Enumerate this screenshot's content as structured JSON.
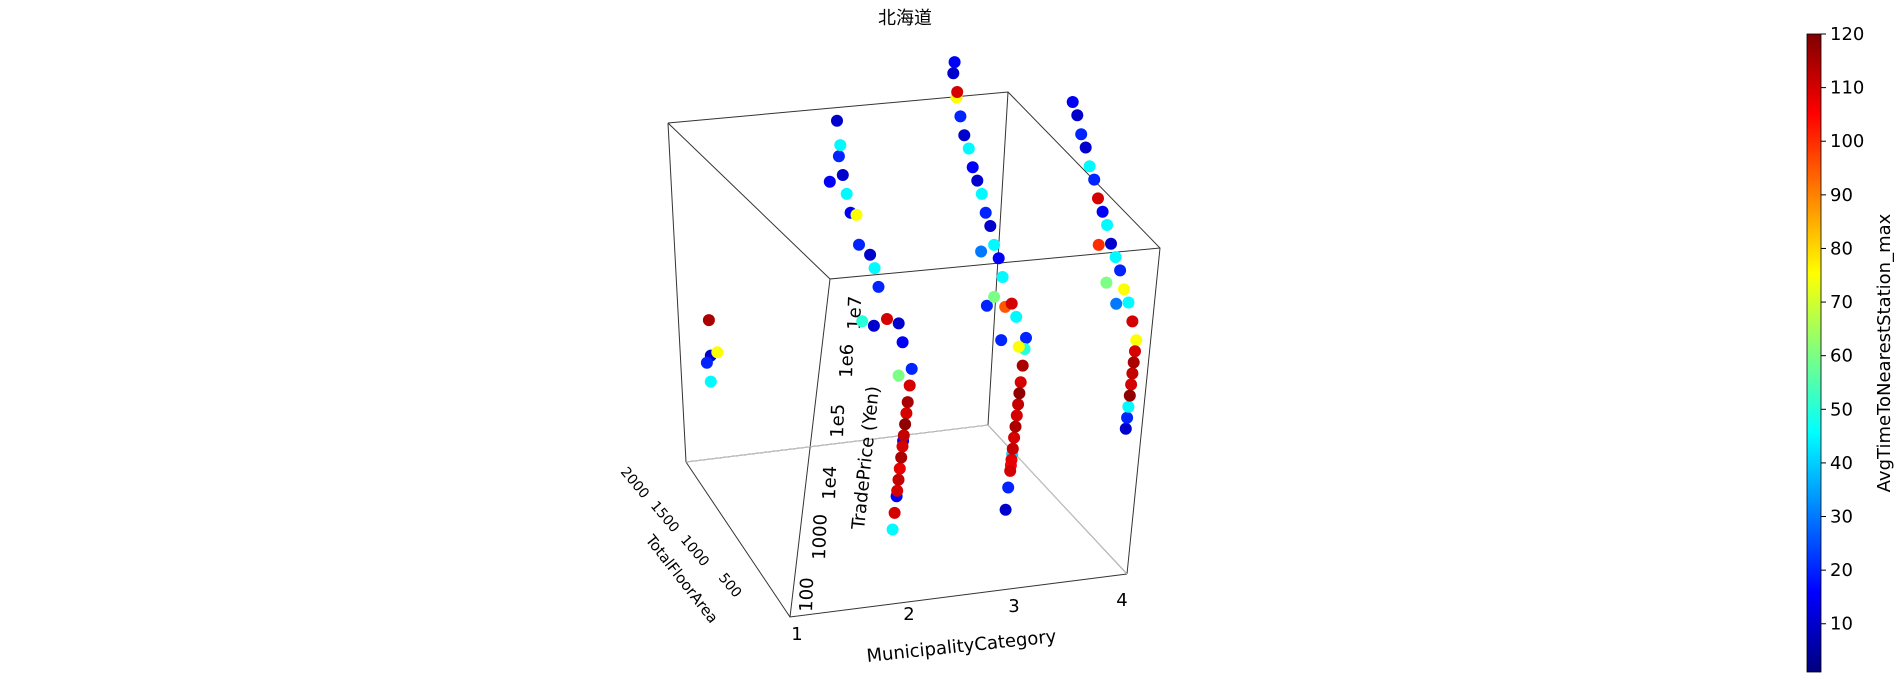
{
  "chart_data": {
    "type": "scatter",
    "projection": "3d",
    "title": "北海道",
    "xlabel": "MunicipalityCategory",
    "ylabel": "TotalFloorArea",
    "zlabel": "TradePrice (Yen)",
    "x_ticks": [
      "1",
      "2",
      "3",
      "4"
    ],
    "y_ticks": [
      "2000",
      "1500",
      "1000",
      "500"
    ],
    "z_ticks": [
      "100",
      "1000",
      "1e4",
      "1e5",
      "1e6",
      "1e7"
    ],
    "z_scale": "log",
    "colorbar": {
      "label": "AvgTimeToNearestStation_max",
      "colormap": "jet",
      "range": [
        1,
        120
      ],
      "ticks": [
        "120",
        "110",
        "100",
        "90",
        "80",
        "70",
        "60",
        "50",
        "40",
        "30",
        "20",
        "10"
      ]
    },
    "series": [
      {
        "description": "data points: x=MunicipalityCategory, y=TotalFloorArea, z=log10(TradePrice), c=AvgTimeToNearestStation_max",
        "points": [
          [
            1,
            1900,
            4.7,
            115
          ],
          [
            1,
            1850,
            4.0,
            20
          ],
          [
            1,
            1800,
            4.2,
            10
          ],
          [
            1,
            1750,
            3.8,
            45
          ],
          [
            1,
            1700,
            4.4,
            75
          ],
          [
            2,
            300,
            5.5,
            110
          ],
          [
            2,
            300,
            5.2,
            115
          ],
          [
            2,
            300,
            5.0,
            110
          ],
          [
            2,
            300,
            4.8,
            118
          ],
          [
            2,
            300,
            4.6,
            112
          ],
          [
            2,
            300,
            4.4,
            110
          ],
          [
            2,
            300,
            4.2,
            115
          ],
          [
            2,
            300,
            4.0,
            108
          ],
          [
            2,
            300,
            3.8,
            112
          ],
          [
            2,
            300,
            3.6,
            110
          ],
          [
            2,
            300,
            5.8,
            20
          ],
          [
            2,
            300,
            4.5,
            15
          ],
          [
            2,
            300,
            3.2,
            110
          ],
          [
            2,
            300,
            2.9,
            45
          ],
          [
            2,
            300,
            3.5,
            15
          ],
          [
            2,
            500,
            5.4,
            60
          ],
          [
            2,
            500,
            6.0,
            15
          ],
          [
            2,
            600,
            6.2,
            10
          ],
          [
            2,
            800,
            6.0,
            110
          ],
          [
            2,
            1000,
            6.3,
            20
          ],
          [
            2,
            1100,
            6.5,
            45
          ],
          [
            2,
            1200,
            6.6,
            10
          ],
          [
            2,
            1400,
            6.5,
            20
          ],
          [
            2,
            1500,
            6.9,
            75
          ],
          [
            2,
            1600,
            6.8,
            15
          ],
          [
            2,
            1700,
            7.0,
            45
          ],
          [
            2,
            1800,
            7.2,
            10
          ],
          [
            2,
            1900,
            7.4,
            20
          ],
          [
            2,
            1900,
            7.6,
            45
          ],
          [
            2,
            2000,
            7.9,
            10
          ],
          [
            2,
            2000,
            6.8,
            15
          ],
          [
            2,
            1000,
            5.6,
            10
          ],
          [
            2,
            1200,
            5.4,
            50
          ],
          [
            3,
            300,
            5.6,
            115
          ],
          [
            3,
            300,
            5.3,
            110
          ],
          [
            3,
            300,
            5.1,
            118
          ],
          [
            3,
            300,
            4.9,
            112
          ],
          [
            3,
            300,
            4.7,
            110
          ],
          [
            3,
            300,
            4.5,
            115
          ],
          [
            3,
            300,
            4.3,
            110
          ],
          [
            3,
            300,
            4.1,
            112
          ],
          [
            3,
            300,
            3.9,
            108
          ],
          [
            3,
            300,
            3.7,
            110
          ],
          [
            3,
            300,
            5.9,
            50
          ],
          [
            3,
            300,
            6.1,
            20
          ],
          [
            3,
            300,
            4.0,
            40
          ],
          [
            3,
            300,
            3.4,
            20
          ],
          [
            3,
            300,
            3.0,
            10
          ],
          [
            3,
            300,
            3.8,
            105
          ],
          [
            3,
            400,
            5.8,
            75
          ],
          [
            3,
            500,
            6.2,
            45
          ],
          [
            3,
            600,
            6.3,
            110
          ],
          [
            3,
            700,
            6.1,
            95
          ],
          [
            3,
            800,
            6.5,
            45
          ],
          [
            3,
            900,
            6.7,
            15
          ],
          [
            3,
            1000,
            6.8,
            45
          ],
          [
            3,
            1100,
            7.0,
            10
          ],
          [
            3,
            1200,
            7.1,
            20
          ],
          [
            3,
            1300,
            7.3,
            45
          ],
          [
            3,
            1400,
            7.4,
            10
          ],
          [
            3,
            1500,
            7.5,
            15
          ],
          [
            3,
            1600,
            7.7,
            45
          ],
          [
            3,
            1700,
            7.8,
            10
          ],
          [
            3,
            1800,
            8.0,
            20
          ],
          [
            3,
            1900,
            8.2,
            75
          ],
          [
            3,
            1900,
            8.3,
            110
          ],
          [
            3,
            2000,
            8.5,
            10
          ],
          [
            3,
            2000,
            8.7,
            15
          ],
          [
            3,
            1000,
            5.7,
            20
          ],
          [
            3,
            900,
            6.0,
            60
          ],
          [
            3,
            1200,
            6.4,
            30
          ],
          [
            3,
            700,
            5.5,
            20
          ],
          [
            4,
            300,
            5.6,
            110
          ],
          [
            4,
            300,
            5.4,
            115
          ],
          [
            4,
            300,
            5.2,
            112
          ],
          [
            4,
            300,
            5.0,
            110
          ],
          [
            4,
            300,
            4.8,
            118
          ],
          [
            4,
            300,
            4.6,
            45
          ],
          [
            4,
            300,
            4.4,
            20
          ],
          [
            4,
            300,
            4.2,
            10
          ],
          [
            4,
            300,
            5.8,
            75
          ],
          [
            4,
            400,
            6.0,
            110
          ],
          [
            4,
            500,
            6.2,
            45
          ],
          [
            4,
            600,
            6.3,
            75
          ],
          [
            4,
            700,
            6.5,
            20
          ],
          [
            4,
            800,
            6.6,
            45
          ],
          [
            4,
            900,
            6.7,
            10
          ],
          [
            4,
            1000,
            6.9,
            45
          ],
          [
            4,
            1100,
            7.0,
            15
          ],
          [
            4,
            1200,
            7.1,
            110
          ],
          [
            4,
            1300,
            7.3,
            20
          ],
          [
            4,
            1400,
            7.4,
            45
          ],
          [
            4,
            1500,
            7.6,
            10
          ],
          [
            4,
            1600,
            7.7,
            20
          ],
          [
            4,
            1700,
            7.9,
            10
          ],
          [
            4,
            1800,
            8.0,
            15
          ],
          [
            4,
            900,
            6.0,
            60
          ],
          [
            4,
            1100,
            6.4,
            100
          ],
          [
            4,
            700,
            5.9,
            30
          ]
        ]
      }
    ]
  }
}
